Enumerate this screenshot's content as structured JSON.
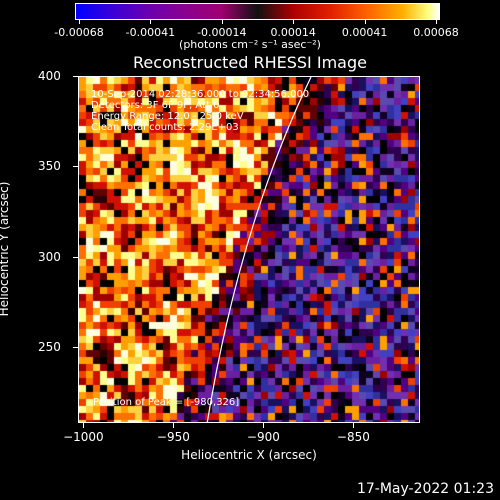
{
  "colorbar": {
    "tick_labels": [
      "-0.00068",
      "-0.00041",
      "-0.00014",
      "0.00014",
      "0.00041",
      "0.00068"
    ],
    "units": "(photons cm⁻² s⁻¹ asec⁻²)"
  },
  "title": "Reconstructed RHESSI Image",
  "info": {
    "line1": "10-Sep-2014 02:28:36.000 to 02:34:56.000",
    "line2": "Detectors: 3F 6F 9F, Att 0",
    "line3": "Energy Range: 12.0 - 25.0 keV",
    "line4": "Clean    Total counts: 2.29E+03",
    "peak": "Position of Peak = [-980,326]"
  },
  "axes": {
    "xlabel": "Heliocentric X (arcsec)",
    "ylabel": "Heliocentric Y (arcsec)",
    "x_ticks": [
      "-1000",
      "-950",
      "-900",
      "-850"
    ],
    "y_ticks": [
      "400",
      "350",
      "300",
      "250"
    ],
    "xlim": [
      -1003,
      -813
    ],
    "ylim": [
      208,
      400
    ]
  },
  "footer": {
    "date": "17-May-2022 01:23"
  },
  "colors": {
    "background": "#000000",
    "limb_line": "#ffffff"
  }
}
